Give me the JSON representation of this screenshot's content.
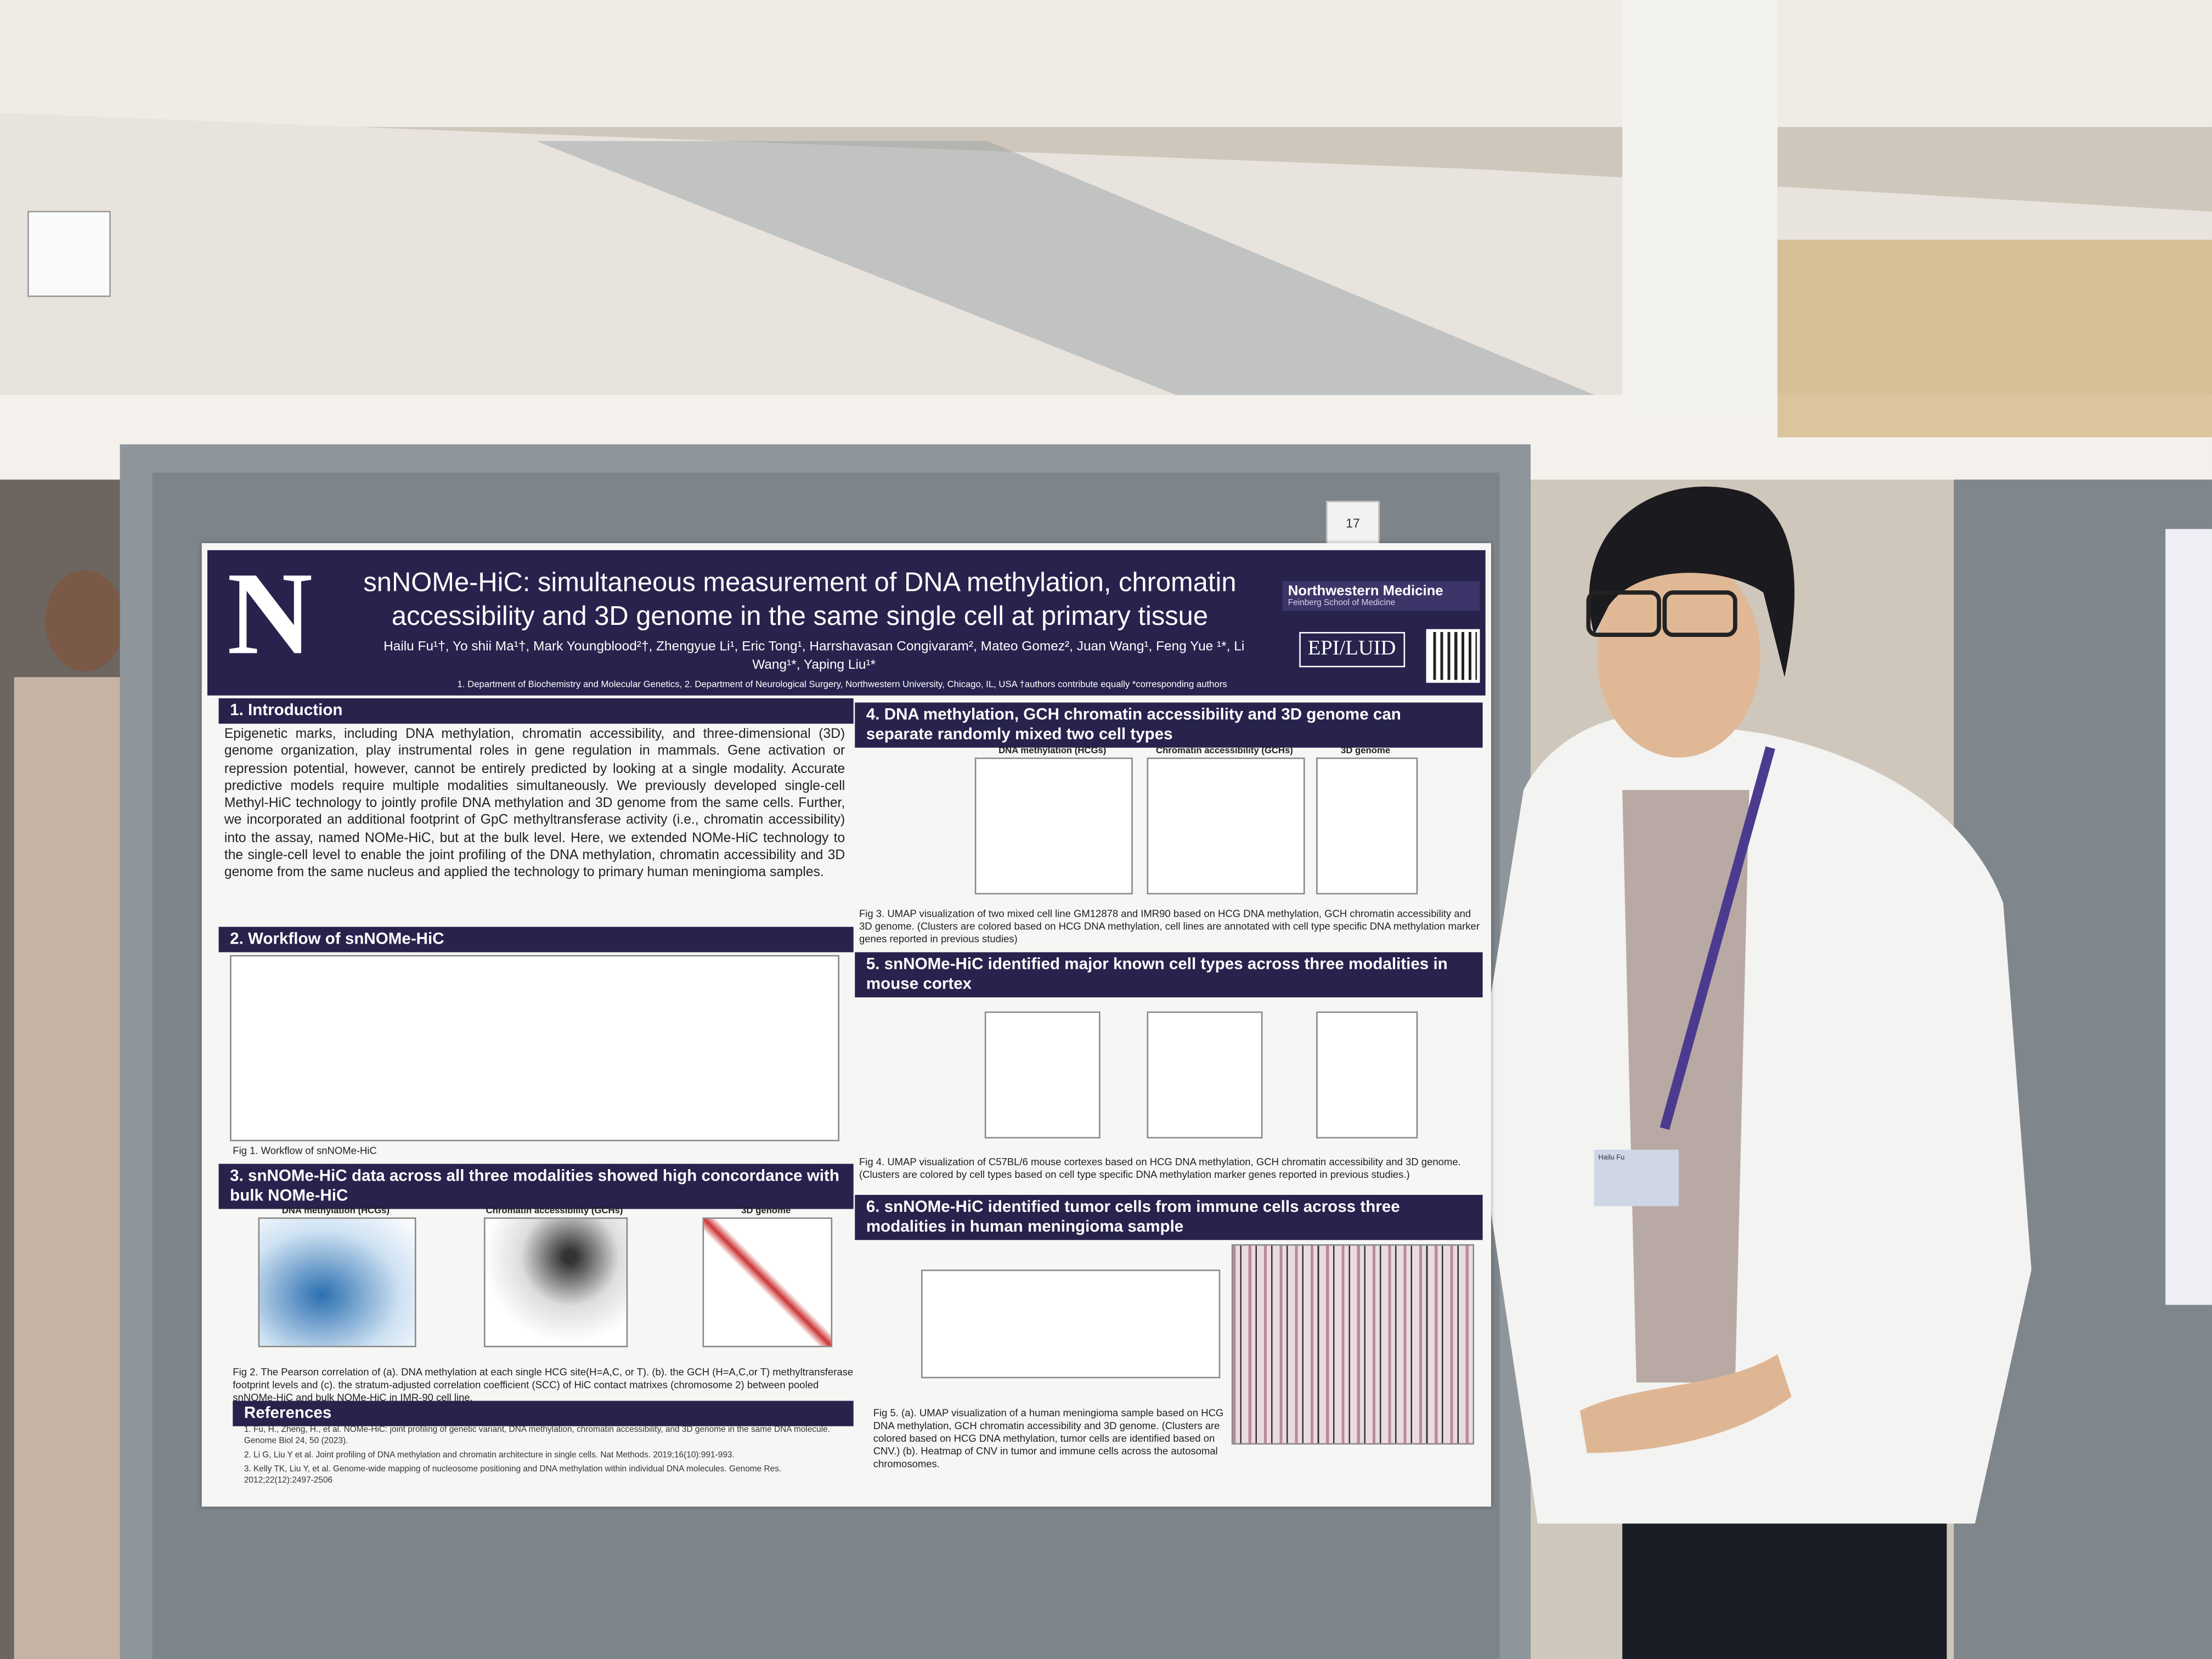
{
  "board_number": "17",
  "name_badge": "Hailu Fu",
  "poster": {
    "logo_letter": "N",
    "title": "snNOMe-HiC: simultaneous measurement of DNA methylation, chromatin accessibility and 3D genome in the same single cell at primary tissue",
    "authors": "Hailu Fu¹†, Yo shii Ma¹†, Mark Youngblood²†, Zhengyue Li¹, Eric Tong¹, Harrshavasan Congivaram², Mateo Gomez², Juan Wang¹, Feng Yue ¹*, Li Wang¹*, Yaping Liu¹*",
    "affiliations": "1. Department of Biochemistry and Molecular Genetics, 2. Department of Neurological Surgery, Northwestern University, Chicago, IL, USA  †authors contribute equally *corresponding authors",
    "institution": "Northwestern Medicine",
    "school": "Feinberg School of Medicine",
    "lab": "EPI/LUID",
    "panel_labels": [
      "DNA methylation (HCGs)",
      "Chromatin accessibility (GCHs)",
      "3D genome"
    ],
    "sections": [
      {
        "heading": "1.  Introduction",
        "text": "Epigenetic marks, including DNA methylation, chromatin accessibility, and three-dimensional (3D) genome organization, play instrumental roles in gene regulation in mammals. Gene activation or repression potential, however, cannot be entirely predicted by looking at a single modality. Accurate predictive models require multiple modalities simultaneously. We previously developed single-cell Methyl-HiC technology to jointly profile DNA methylation and 3D genome from the same cells. Further, we incorporated an additional footprint of GpC methyltransferase activity (i.e., chromatin accessibility) into the assay, named NOMe-HiC, but at the bulk level. Here, we extended NOMe-HiC technology to the single-cell level to enable the joint profiling of the DNA methylation, chromatin accessibility and 3D genome from the same nucleus and applied the technology to primary human meningioma samples."
      },
      {
        "heading": "2.  Workflow of snNOMe-HiC",
        "caption": "Fig 1. Workflow of snNOMe-HiC"
      },
      {
        "heading": "3.  snNOMe-HiC data across all three modalities showed high concordance with bulk NOMe-HiC",
        "caption": "Fig 2. The Pearson correlation of (a). DNA methylation at each single HCG site(H=A,C, or T). (b). the GCH (H=A,C,or T) methyltransferase footprint levels and (c). the stratum-adjusted correlation coefficient (SCC) of HiC contact matrixes (chromosome 2) between pooled snNOMe-HiC and bulk NOMe-HiC in IMR-90 cell line."
      },
      {
        "heading": "4.  DNA methylation, GCH chromatin accessibility and 3D genome can separate randomly mixed two cell types",
        "caption": "Fig 3. UMAP visualization of two mixed cell line GM12878 and IMR90 based on HCG DNA methylation, GCH chromatin accessibility and 3D genome. (Clusters are colored based on HCG DNA methylation, cell lines are annotated with cell type specific DNA methylation marker genes reported in previous studies)"
      },
      {
        "heading": "5.  snNOMe-HiC identified major known cell types across three modalities in mouse cortex",
        "caption": "Fig 4. UMAP visualization of C57BL/6 mouse cortexes based on HCG DNA methylation, GCH chromatin accessibility and 3D genome. (Clusters are colored by cell types based on cell type specific DNA methylation marker genes reported in previous studies.)"
      },
      {
        "heading": "6.  snNOMe-HiC identified tumor cells from immune cells across three modalities in human meningioma sample",
        "caption": "Fig 5. (a). UMAP visualization of a human meningioma sample based on HCG DNA methylation, GCH chromatin accessibility and 3D genome. (Clusters are colored based on HCG DNA methylation, tumor cells are identified based on CNV.) (b). Heatmap of CNV in tumor and immune cells across the autosomal chromosomes."
      }
    ],
    "references": {
      "heading": "References",
      "items": [
        "1. Fu, H., Zheng, H., et al. NOMe-HiC: joint profiling of genetic variant, DNA methylation, chromatin accessibility, and 3D genome in the same DNA molecule. Genome Biol 24, 50 (2023).",
        "2. Li G, Liu Y et al. Joint profiling of DNA methylation and chromatin architecture in single cells. Nat Methods. 2019;16(10):991-993.",
        "3. Kelly TK, Liu Y, et al. Genome-wide mapping of nucleosome positioning and DNA methylation within individual DNA molecules. Genome Res. 2012;22(12):2497-2506"
      ]
    }
  }
}
